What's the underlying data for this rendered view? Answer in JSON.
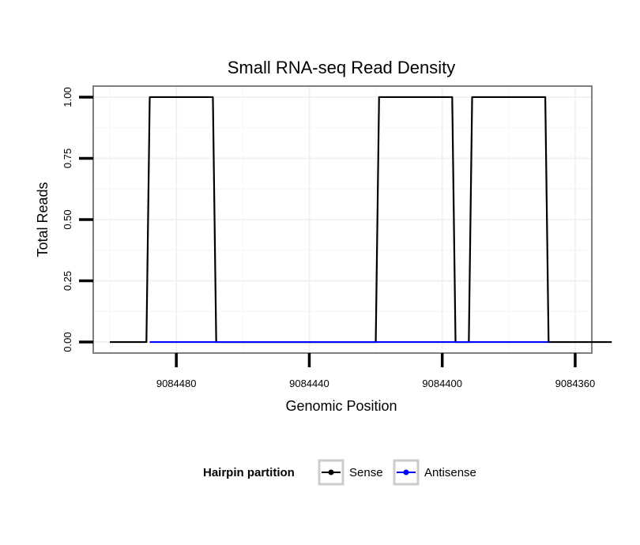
{
  "chart_data": {
    "type": "line",
    "title": "Small RNA-seq Read Density",
    "xlabel": "Genomic Position",
    "ylabel": "Total Reads",
    "xlim": [
      9084505,
      9084355
    ],
    "x_reversed": true,
    "ylim": [
      -0.045,
      1.045
    ],
    "x_ticks": [
      9084480,
      9084440,
      9084400,
      9084360
    ],
    "x_tick_labels": [
      "9084480",
      "9084440",
      "9084400",
      "9084360"
    ],
    "y_ticks": [
      0,
      0.25,
      0.5,
      0.75,
      1
    ],
    "y_tick_labels": [
      "0.00",
      "0.25",
      "0.50",
      "0.75",
      "1.00"
    ],
    "grid": true,
    "legend": {
      "title": "Hairpin partition",
      "position": "bottom"
    },
    "series": [
      {
        "name": "Sense",
        "color": "#000000",
        "x": [
          9084500,
          9084489,
          9084488,
          9084469,
          9084468,
          9084420,
          9084419,
          9084397,
          9084396,
          9084392,
          9084391,
          9084369,
          9084368,
          9084349
        ],
        "values": [
          0,
          0,
          1,
          1,
          0,
          0,
          1,
          1,
          0,
          0,
          1,
          1,
          0,
          0
        ]
      },
      {
        "name": "Antisense",
        "color": "#0000ff",
        "x": [
          9084488,
          9084468,
          9084419,
          9084396,
          9084391,
          9084368
        ],
        "values": [
          0,
          0,
          0,
          0,
          0,
          0
        ]
      }
    ]
  }
}
